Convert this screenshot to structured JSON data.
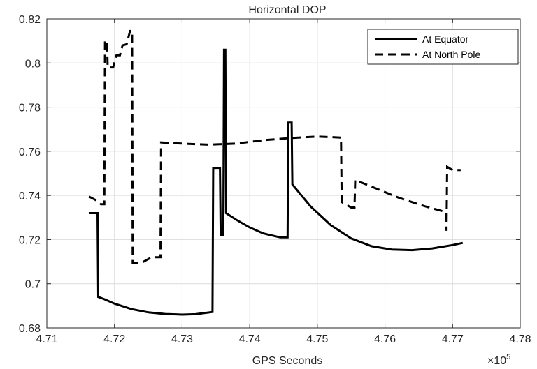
{
  "chart_data": {
    "type": "line",
    "title": "Horizontal DOP",
    "xlabel": "GPS Seconds",
    "ylabel": "",
    "x_exponent_label": "×10",
    "x_exponent_power": "5",
    "xlim": [
      4.71,
      4.78
    ],
    "ylim": [
      0.68,
      0.82
    ],
    "xticks": [
      "4.71",
      "4.72",
      "4.73",
      "4.74",
      "4.75",
      "4.76",
      "4.77",
      "4.78"
    ],
    "yticks": [
      "0.68",
      "0.7",
      "0.72",
      "0.74",
      "0.76",
      "0.78",
      "0.8",
      "0.82"
    ],
    "xtick_values": [
      4.71,
      4.72,
      4.73,
      4.74,
      4.75,
      4.76,
      4.77,
      4.78
    ],
    "ytick_values": [
      0.68,
      0.7,
      0.72,
      0.74,
      0.76,
      0.78,
      0.8,
      0.82
    ],
    "grid": true,
    "legend_position": "top-right",
    "series": [
      {
        "name": "At Equator",
        "style": "solid",
        "color": "#000000",
        "points": [
          [
            4.7162,
            0.732
          ],
          [
            4.7175,
            0.732
          ],
          [
            4.7176,
            0.694
          ],
          [
            4.7185,
            0.693
          ],
          [
            4.72,
            0.691
          ],
          [
            4.7225,
            0.6885
          ],
          [
            4.725,
            0.687
          ],
          [
            4.7275,
            0.6863
          ],
          [
            4.73,
            0.686
          ],
          [
            4.732,
            0.6862
          ],
          [
            4.7345,
            0.6872
          ],
          [
            4.7346,
            0.7525
          ],
          [
            4.7356,
            0.7525
          ],
          [
            4.7357,
            0.722
          ],
          [
            4.7361,
            0.722
          ],
          [
            4.7362,
            0.806
          ],
          [
            4.7364,
            0.806
          ],
          [
            4.7365,
            0.732
          ],
          [
            4.738,
            0.729
          ],
          [
            4.74,
            0.7255
          ],
          [
            4.742,
            0.7228
          ],
          [
            4.7445,
            0.721
          ],
          [
            4.7456,
            0.721
          ],
          [
            4.7457,
            0.773
          ],
          [
            4.7462,
            0.773
          ],
          [
            4.7463,
            0.745
          ],
          [
            4.749,
            0.735
          ],
          [
            4.752,
            0.7265
          ],
          [
            4.755,
            0.7205
          ],
          [
            4.758,
            0.717
          ],
          [
            4.761,
            0.7155
          ],
          [
            4.764,
            0.7152
          ],
          [
            4.767,
            0.716
          ],
          [
            4.77,
            0.7175
          ],
          [
            4.7715,
            0.7185
          ]
        ]
      },
      {
        "name": "At North Pole",
        "style": "dashed",
        "color": "#000000",
        "points": [
          [
            4.7162,
            0.7395
          ],
          [
            4.7175,
            0.7375
          ],
          [
            4.718,
            0.736
          ],
          [
            4.7185,
            0.736
          ],
          [
            4.7186,
            0.81
          ],
          [
            4.7189,
            0.81
          ],
          [
            4.719,
            0.798
          ],
          [
            4.7198,
            0.798
          ],
          [
            4.7203,
            0.8035
          ],
          [
            4.7208,
            0.8035
          ],
          [
            4.7212,
            0.808
          ],
          [
            4.7218,
            0.8085
          ],
          [
            4.7223,
            0.8145
          ],
          [
            4.7226,
            0.8145
          ],
          [
            4.7227,
            0.7095
          ],
          [
            4.724,
            0.7095
          ],
          [
            4.7255,
            0.712
          ],
          [
            4.7268,
            0.712
          ],
          [
            4.7269,
            0.764
          ],
          [
            4.73,
            0.7635
          ],
          [
            4.734,
            0.763
          ],
          [
            4.738,
            0.7635
          ],
          [
            4.742,
            0.765
          ],
          [
            4.746,
            0.766
          ],
          [
            4.75,
            0.7667
          ],
          [
            4.7535,
            0.7662
          ],
          [
            4.7536,
            0.737
          ],
          [
            4.755,
            0.7345
          ],
          [
            4.7555,
            0.7345
          ],
          [
            4.7556,
            0.747
          ],
          [
            4.758,
            0.744
          ],
          [
            4.762,
            0.739
          ],
          [
            4.766,
            0.735
          ],
          [
            4.769,
            0.7325
          ],
          [
            4.7691,
            0.724
          ],
          [
            4.7692,
            0.753
          ],
          [
            4.77,
            0.7515
          ],
          [
            4.7712,
            0.7515
          ]
        ]
      }
    ]
  }
}
